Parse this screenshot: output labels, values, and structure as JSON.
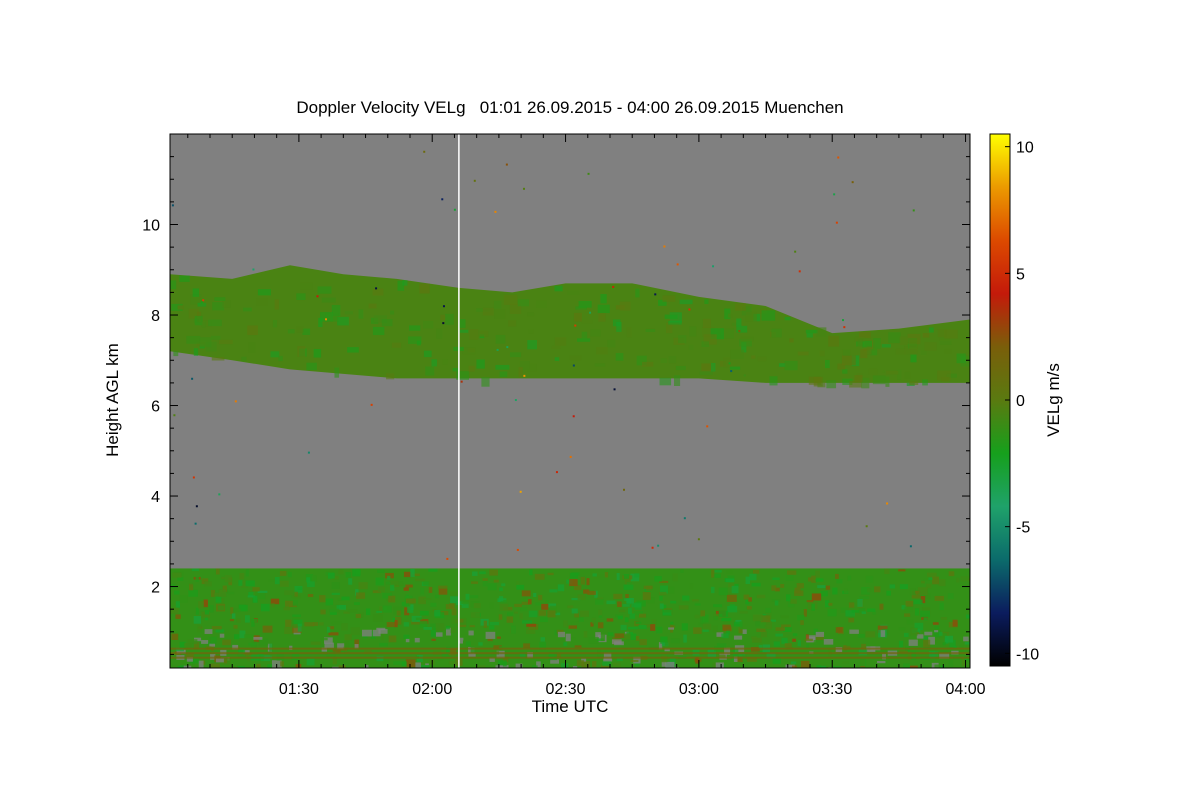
{
  "chart_data": {
    "type": "heatmap",
    "title": "Doppler Velocity VELg   01:01 26.09.2015 - 04:00 26.09.2015 Muenchen",
    "xlabel": "Time UTC",
    "ylabel": "Height AGL km",
    "colorbar_label": "VELg m/s",
    "x_range_minutes_utc": [
      61,
      241
    ],
    "y_range_km": [
      0.2,
      12
    ],
    "x_ticks": [
      {
        "label": "01:30",
        "minutes": 90
      },
      {
        "label": "02:00",
        "minutes": 120
      },
      {
        "label": "02:30",
        "minutes": 150
      },
      {
        "label": "03:00",
        "minutes": 180
      },
      {
        "label": "03:30",
        "minutes": 210
      },
      {
        "label": "04:00",
        "minutes": 240
      }
    ],
    "y_ticks": [
      {
        "label": "2",
        "value": 2
      },
      {
        "label": "4",
        "value": 4
      },
      {
        "label": "6",
        "value": 6
      },
      {
        "label": "8",
        "value": 8
      },
      {
        "label": "10",
        "value": 10
      }
    ],
    "colorbar_range": [
      -10.5,
      10.5
    ],
    "colorbar_ticks": [
      {
        "label": "10",
        "value": 10
      },
      {
        "label": "5",
        "value": 5
      },
      {
        "label": "0",
        "value": 0
      },
      {
        "label": "-5",
        "value": -5
      },
      {
        "label": "-10",
        "value": -10
      }
    ],
    "colors": {
      "no_signal": "#808080",
      "colormap": [
        "#000000",
        "#0b1c5e",
        "#0b6b6b",
        "#1fa26a",
        "#16a01c",
        "#5a7a10",
        "#7a5e0a",
        "#c41a0a",
        "#dc4a00",
        "#ec9a00",
        "#ffff00"
      ]
    },
    "cloud_layer_upper": {
      "x_minutes": [
        61,
        75,
        88,
        100,
        112,
        126,
        138,
        150,
        165,
        180,
        195,
        210,
        225,
        241
      ],
      "top_km": [
        8.9,
        8.8,
        9.1,
        8.9,
        8.8,
        8.6,
        8.5,
        8.7,
        8.7,
        8.4,
        8.2,
        7.6,
        7.7,
        7.9
      ],
      "base_km": [
        7.2,
        7.0,
        6.8,
        6.7,
        6.6,
        6.6,
        6.6,
        6.6,
        6.6,
        6.6,
        6.5,
        6.5,
        6.5,
        6.5
      ],
      "mean_velocity_ms": -0.5
    },
    "boundary_layer": {
      "top_km": 2.4,
      "base_km": 0.2,
      "mean_velocity_ms": -1.2
    },
    "data_gap_minutes": 126
  }
}
